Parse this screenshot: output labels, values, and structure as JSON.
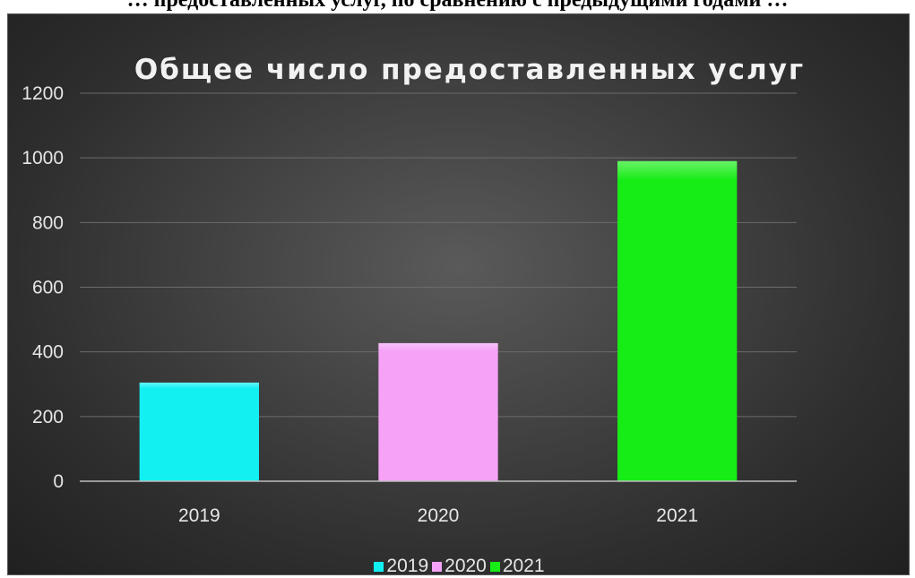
{
  "caption": "… предоставленных услуг, по сравнению с предыдущими годами …",
  "chart_data": {
    "type": "bar",
    "title": "Общее число предоставленных  услуг",
    "xlabel": "",
    "ylabel": "",
    "categories": [
      "2019",
      "2020",
      "2021"
    ],
    "values": [
      305,
      427,
      990
    ],
    "colors": [
      "#12f0f2",
      "#f5a2f7",
      "#16ec16"
    ],
    "ylim": [
      0,
      1200
    ],
    "yticks": [
      "0",
      "200",
      "400",
      "600",
      "800",
      "1000",
      "1200"
    ],
    "grid": true,
    "legend": {
      "placement": "bottom",
      "entries": [
        "2019",
        "2020",
        "2021"
      ]
    },
    "background": "#3c3c3c"
  }
}
